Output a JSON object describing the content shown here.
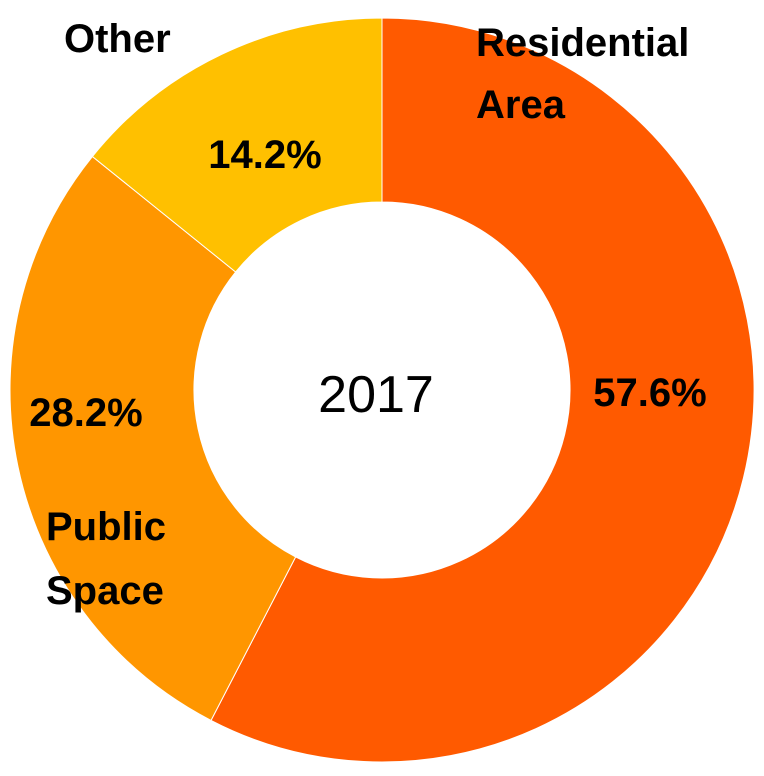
{
  "chart_data": {
    "type": "pie",
    "variant": "donut",
    "center_label": "2017",
    "slices": [
      {
        "name": "Residential Area",
        "name_lines": [
          "Residential",
          "Area"
        ],
        "value": 57.6,
        "label": "57.6%",
        "color": "#FF5A00"
      },
      {
        "name": "Public Space",
        "name_lines": [
          "Public",
          "Space"
        ],
        "value": 28.2,
        "label": "28.2%",
        "color": "#FF9600"
      },
      {
        "name": "Other",
        "name_lines": [
          "Other"
        ],
        "value": 14.2,
        "label": "14.2%",
        "color": "#FFC000"
      }
    ],
    "start_angle": "12 o'clock",
    "direction": "clockwise"
  }
}
